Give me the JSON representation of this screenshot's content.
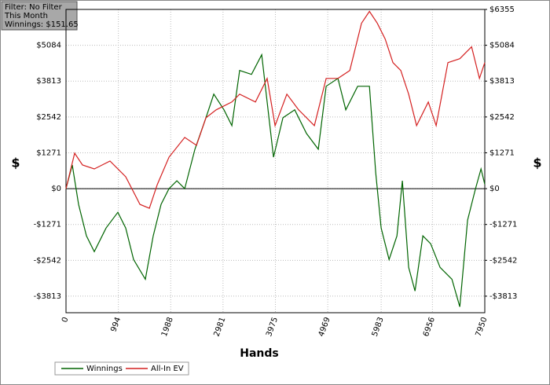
{
  "chart_data": {
    "type": "line",
    "info_box": [
      "Filter: No Filter",
      "This Month",
      "Winnings: $151.65"
    ],
    "xlabel": "Hands",
    "ylabel": "$",
    "y2label": "$",
    "xlim": [
      0,
      7950
    ],
    "xticks": [
      0,
      994,
      1988,
      2981,
      3975,
      4969,
      5983,
      6956,
      7950
    ],
    "ylim": [
      -4400,
      6355
    ],
    "yticks": [
      {
        "value": -3813,
        "label": "-$3813"
      },
      {
        "value": -2542,
        "label": "-$2542"
      },
      {
        "value": -1271,
        "label": "-$1271"
      },
      {
        "value": 0,
        "label": "$0"
      },
      {
        "value": 1271,
        "label": "$1271"
      },
      {
        "value": 2542,
        "label": "$2542"
      },
      {
        "value": 3813,
        "label": "$3813"
      },
      {
        "value": 5084,
        "label": "$5084"
      }
    ],
    "y2lim": [
      -4400,
      6355
    ],
    "y2ticks": [
      {
        "value": -3813,
        "label": "-$3813"
      },
      {
        "value": -2542,
        "label": "-$2542"
      },
      {
        "value": -1271,
        "label": "-$1271"
      },
      {
        "value": 0,
        "label": "$0"
      },
      {
        "value": 1271,
        "label": "$1271"
      },
      {
        "value": 2542,
        "label": "$2542"
      },
      {
        "value": 3813,
        "label": "$3813"
      },
      {
        "value": 5084,
        "label": "$5084"
      },
      {
        "value": 6355,
        "label": "$6355"
      }
    ],
    "grid": true,
    "zero_line": true,
    "series": [
      {
        "name": "Winnings",
        "color": "#006400",
        "x": [
          0,
          119,
          239,
          388,
          537,
          761,
          985,
          1134,
          1283,
          1507,
          1656,
          1805,
          1955,
          2104,
          2253,
          2447,
          2656,
          2805,
          2999,
          3148,
          3297,
          3521,
          3715,
          3819,
          3939,
          4118,
          4342,
          4566,
          4790,
          4939,
          5163,
          5312,
          5536,
          5760,
          5879,
          5983,
          6133,
          6282,
          6386,
          6505,
          6625,
          6774,
          6923,
          7102,
          7326,
          7475,
          7624,
          7774,
          7878,
          7950
        ],
        "values": [
          0,
          838,
          -559,
          -1676,
          -2234,
          -1397,
          -838,
          -1397,
          -2514,
          -3212,
          -1676,
          -559,
          0,
          279,
          0,
          1397,
          2514,
          3352,
          2793,
          2234,
          4190,
          4050,
          4748,
          3072,
          1117,
          2514,
          2793,
          1955,
          1397,
          3631,
          3910,
          2793,
          3631,
          3631,
          559,
          -1397,
          -2514,
          -1676,
          279,
          -2793,
          -3631,
          -1676,
          -1955,
          -2793,
          -3212,
          -4190,
          -1117,
          0,
          698,
          152
        ]
      },
      {
        "name": "All-In EV",
        "color": "#d42020",
        "x": [
          0,
          164,
          313,
          537,
          835,
          1134,
          1403,
          1582,
          1731,
          1955,
          2253,
          2477,
          2656,
          2850,
          3148,
          3297,
          3596,
          3819,
          3969,
          4193,
          4417,
          4715,
          4939,
          5163,
          5387,
          5610,
          5760,
          5909,
          6058,
          6207,
          6356,
          6505,
          6655,
          6878,
          7027,
          7251,
          7475,
          7699,
          7848,
          7950
        ],
        "values": [
          0,
          1257,
          838,
          698,
          978,
          419,
          -559,
          -698,
          140,
          1117,
          1816,
          1536,
          2514,
          2793,
          3072,
          3352,
          3072,
          3910,
          2234,
          3352,
          2793,
          2234,
          3910,
          3910,
          4190,
          5865,
          6284,
          5865,
          5307,
          4469,
          4190,
          3352,
          2234,
          3072,
          2234,
          4469,
          4609,
          5028,
          3910,
          4469
        ]
      }
    ]
  }
}
